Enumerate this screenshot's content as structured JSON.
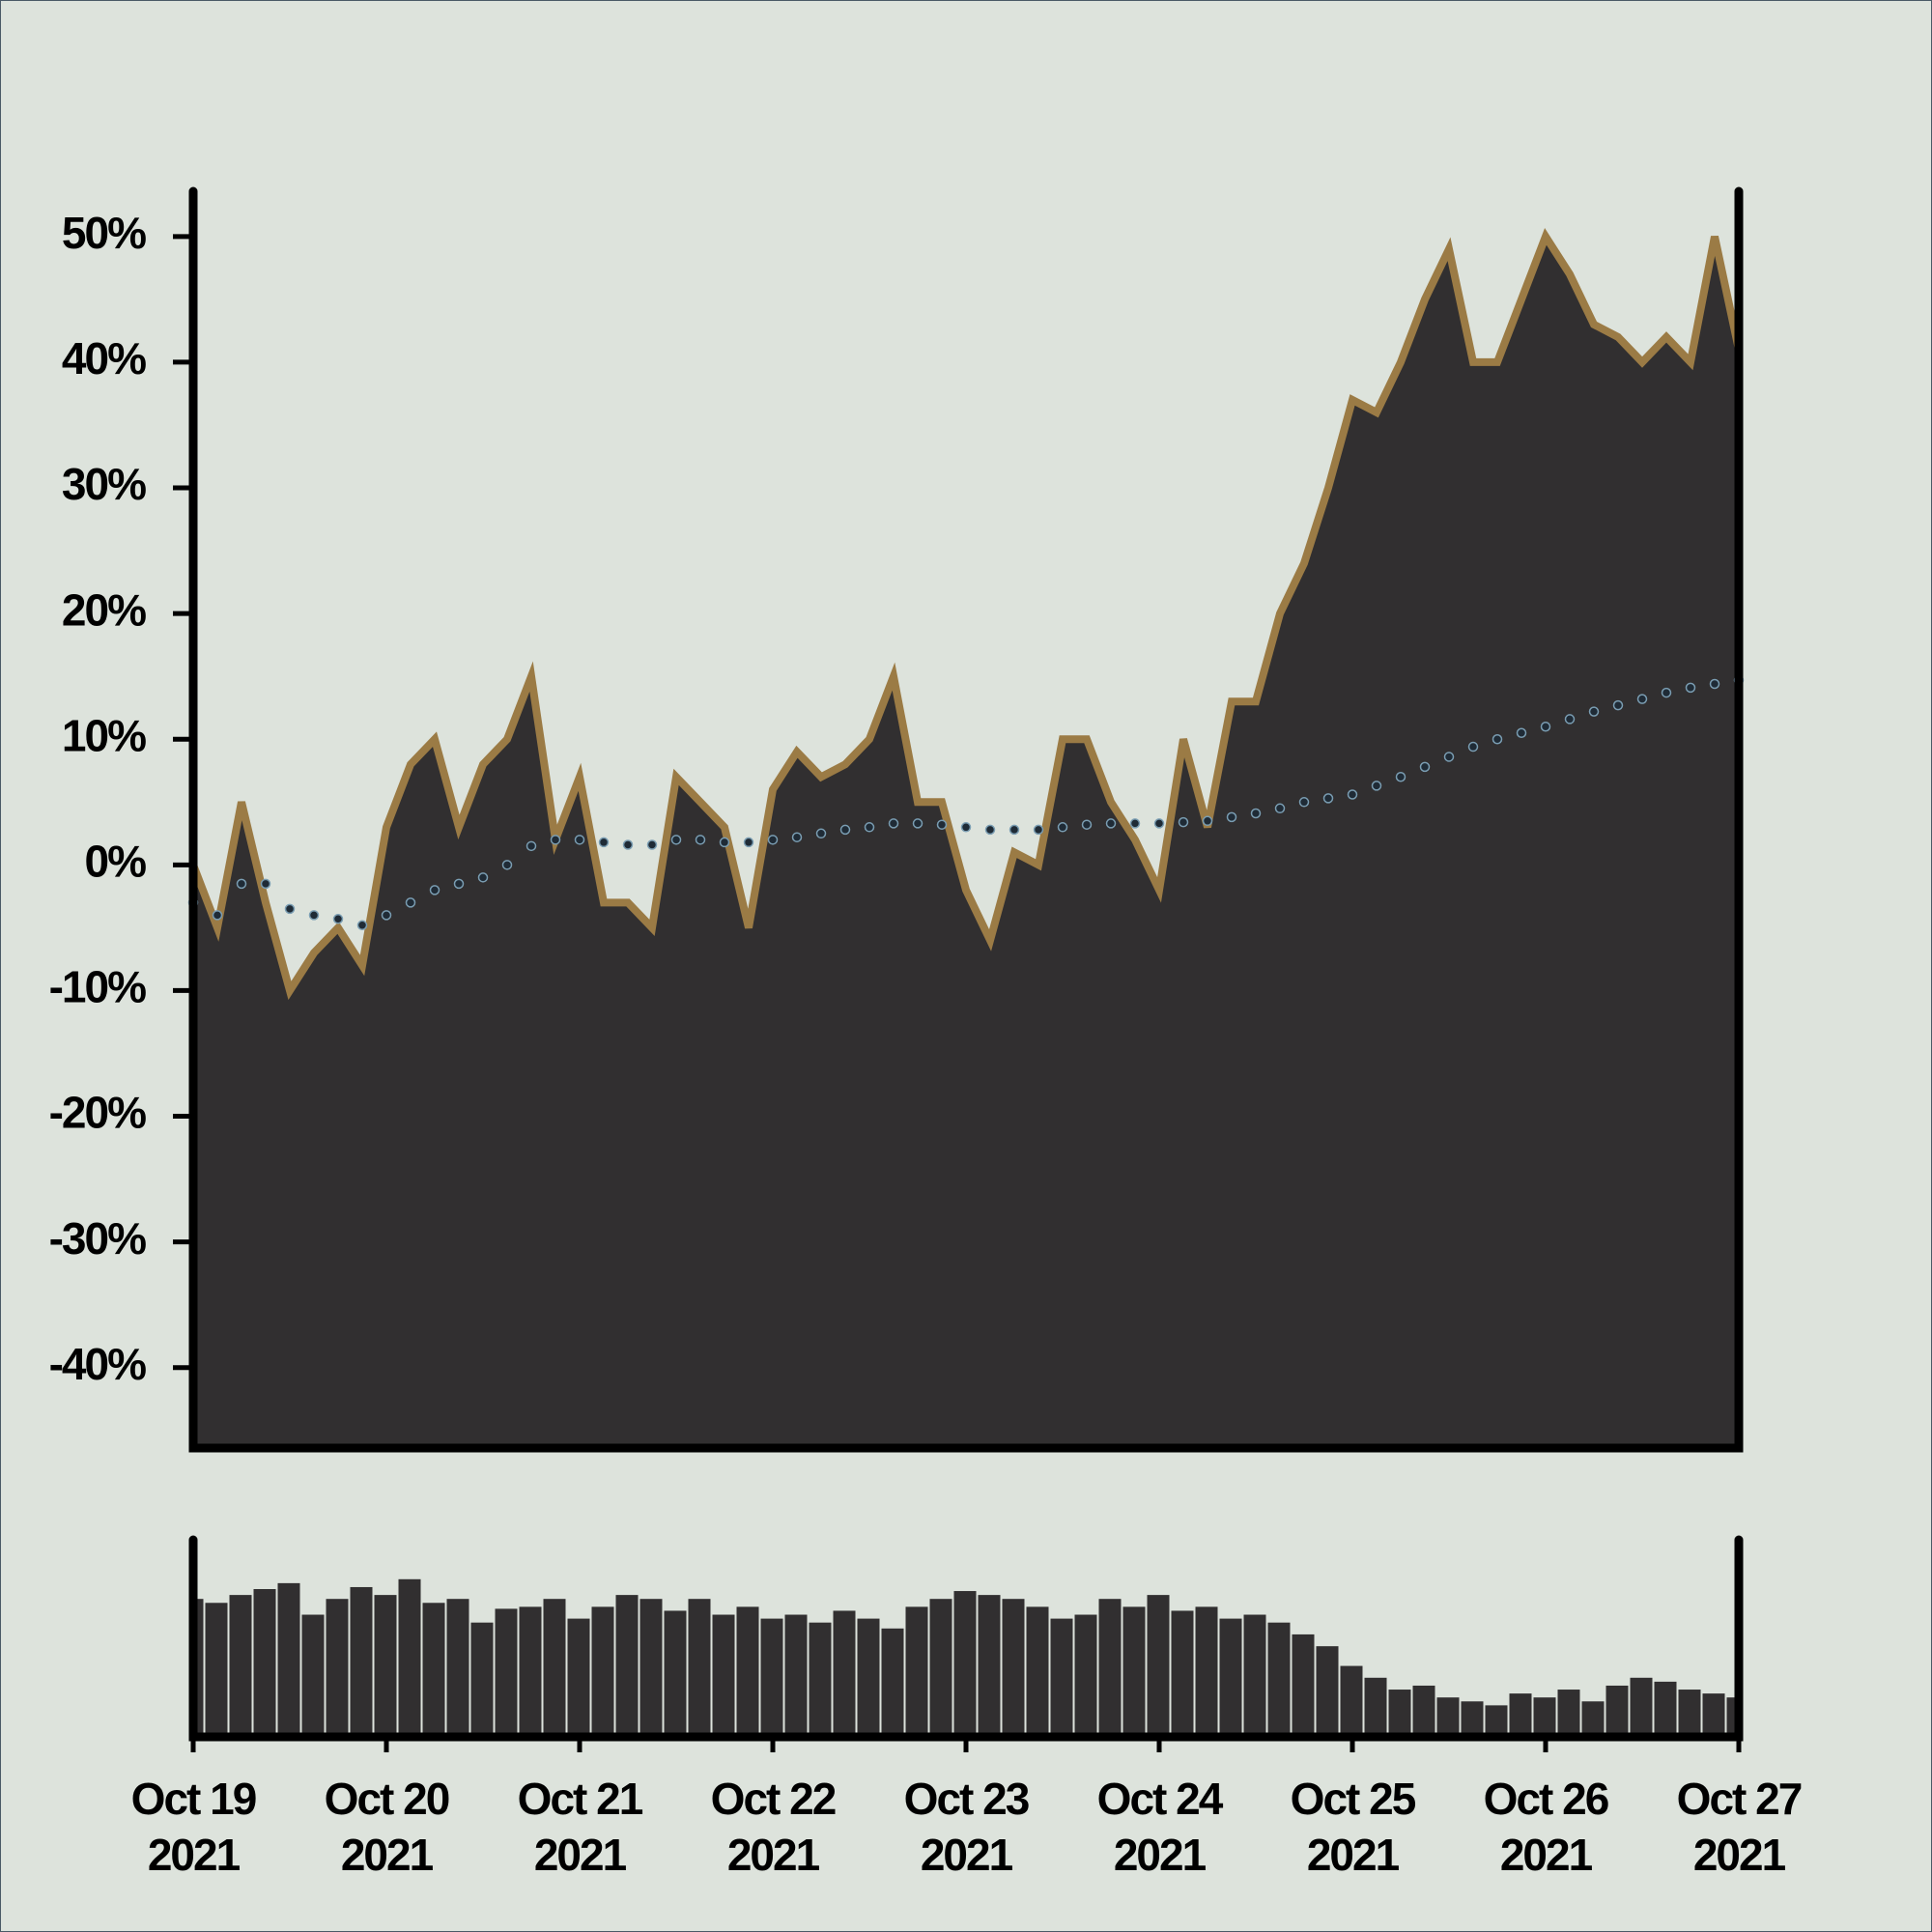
{
  "chart_data": [
    {
      "type": "area",
      "x": [
        "2021-10-19T00:00",
        "2021-10-19T03:00",
        "2021-10-19T06:00",
        "2021-10-19T09:00",
        "2021-10-19T12:00",
        "2021-10-19T15:00",
        "2021-10-19T18:00",
        "2021-10-19T21:00",
        "2021-10-20T00:00",
        "2021-10-20T03:00",
        "2021-10-20T06:00",
        "2021-10-20T09:00",
        "2021-10-20T12:00",
        "2021-10-20T15:00",
        "2021-10-20T18:00",
        "2021-10-20T21:00",
        "2021-10-21T00:00",
        "2021-10-21T03:00",
        "2021-10-21T06:00",
        "2021-10-21T09:00",
        "2021-10-21T12:00",
        "2021-10-21T15:00",
        "2021-10-21T18:00",
        "2021-10-21T21:00",
        "2021-10-22T00:00",
        "2021-10-22T03:00",
        "2021-10-22T06:00",
        "2021-10-22T09:00",
        "2021-10-22T12:00",
        "2021-10-22T15:00",
        "2021-10-22T18:00",
        "2021-10-22T21:00",
        "2021-10-23T00:00",
        "2021-10-23T03:00",
        "2021-10-23T06:00",
        "2021-10-23T09:00",
        "2021-10-23T12:00",
        "2021-10-23T15:00",
        "2021-10-23T18:00",
        "2021-10-23T21:00",
        "2021-10-24T00:00",
        "2021-10-24T03:00",
        "2021-10-24T06:00",
        "2021-10-24T09:00",
        "2021-10-24T12:00",
        "2021-10-24T15:00",
        "2021-10-24T18:00",
        "2021-10-24T21:00",
        "2021-10-25T00:00",
        "2021-10-25T03:00",
        "2021-10-25T06:00",
        "2021-10-25T09:00",
        "2021-10-25T12:00",
        "2021-10-25T15:00",
        "2021-10-25T18:00",
        "2021-10-25T21:00",
        "2021-10-26T00:00",
        "2021-10-26T03:00",
        "2021-10-26T06:00",
        "2021-10-26T09:00",
        "2021-10-26T12:00",
        "2021-10-26T15:00",
        "2021-10-26T18:00",
        "2021-10-26T21:00",
        "2021-10-27T00:00"
      ],
      "series": [
        {
          "type": "area",
          "color": "#9b7b45",
          "fill": "#312f30",
          "values": [
            0,
            -5,
            5,
            -3,
            -10,
            -7,
            -5,
            -8,
            3,
            8,
            10,
            3,
            8,
            10,
            15,
            2,
            7,
            -3,
            -3,
            -5,
            7,
            5,
            3,
            -5,
            6,
            9,
            7,
            8,
            10,
            15,
            5,
            5,
            -2,
            -6,
            1,
            0,
            10,
            10,
            5,
            2,
            -2,
            10,
            3,
            13,
            13,
            20,
            24,
            30,
            37,
            36,
            40,
            45,
            49,
            40,
            40,
            45,
            50,
            47,
            43,
            42,
            40,
            42,
            40,
            50,
            41
          ]
        },
        {
          "type": "dots",
          "color": "#1f2b36",
          "edge": "#7a9db2",
          "values": [
            -3,
            -4,
            -1.5,
            -1.5,
            -3.5,
            -4,
            -4.3,
            -4.8,
            -4,
            -3,
            -2,
            -1.5,
            -1,
            0,
            1.5,
            2,
            2,
            1.8,
            1.6,
            1.6,
            2,
            2,
            1.8,
            1.8,
            2,
            2.2,
            2.5,
            2.8,
            3,
            3.3,
            3.3,
            3.2,
            3,
            2.8,
            2.8,
            2.8,
            3,
            3.2,
            3.3,
            3.3,
            3.3,
            3.4,
            3.5,
            3.8,
            4.1,
            4.5,
            5,
            5.3,
            5.6,
            6.3,
            7,
            7.8,
            8.6,
            9.4,
            10,
            10.5,
            11,
            11.6,
            12.2,
            12.7,
            13.2,
            13.7,
            14.1,
            14.4,
            14.7
          ]
        }
      ],
      "xlim": [
        "2021-10-19T00:00",
        "2021-10-27T00:00"
      ],
      "ylim": [
        -46.4,
        53.6
      ],
      "yticks": [
        {
          "value": -40,
          "label": "-40%"
        },
        {
          "value": -30,
          "label": "-30%"
        },
        {
          "value": -20,
          "label": "-20%"
        },
        {
          "value": -10,
          "label": "-10%"
        },
        {
          "value": 0,
          "label": "0%"
        },
        {
          "value": 10,
          "label": "10%"
        },
        {
          "value": 20,
          "label": "20%"
        },
        {
          "value": 30,
          "label": "30%"
        },
        {
          "value": 40,
          "label": "40%"
        },
        {
          "value": 50,
          "label": "50%"
        }
      ]
    },
    {
      "type": "bar",
      "x": [
        "2021-10-19T00:00",
        "2021-10-19T03:00",
        "2021-10-19T06:00",
        "2021-10-19T09:00",
        "2021-10-19T12:00",
        "2021-10-19T15:00",
        "2021-10-19T18:00",
        "2021-10-19T21:00",
        "2021-10-20T00:00",
        "2021-10-20T03:00",
        "2021-10-20T06:00",
        "2021-10-20T09:00",
        "2021-10-20T12:00",
        "2021-10-20T15:00",
        "2021-10-20T18:00",
        "2021-10-20T21:00",
        "2021-10-21T00:00",
        "2021-10-21T03:00",
        "2021-10-21T06:00",
        "2021-10-21T09:00",
        "2021-10-21T12:00",
        "2021-10-21T15:00",
        "2021-10-21T18:00",
        "2021-10-21T21:00",
        "2021-10-22T00:00",
        "2021-10-22T03:00",
        "2021-10-22T06:00",
        "2021-10-22T09:00",
        "2021-10-22T12:00",
        "2021-10-22T15:00",
        "2021-10-22T18:00",
        "2021-10-22T21:00",
        "2021-10-23T00:00",
        "2021-10-23T03:00",
        "2021-10-23T06:00",
        "2021-10-23T09:00",
        "2021-10-23T12:00",
        "2021-10-23T15:00",
        "2021-10-23T18:00",
        "2021-10-23T21:00",
        "2021-10-24T00:00",
        "2021-10-24T03:00",
        "2021-10-24T06:00",
        "2021-10-24T09:00",
        "2021-10-24T12:00",
        "2021-10-24T15:00",
        "2021-10-24T18:00",
        "2021-10-24T21:00",
        "2021-10-25T00:00",
        "2021-10-25T03:00",
        "2021-10-25T06:00",
        "2021-10-25T09:00",
        "2021-10-25T12:00",
        "2021-10-25T15:00",
        "2021-10-25T18:00",
        "2021-10-25T21:00",
        "2021-10-26T00:00",
        "2021-10-26T03:00",
        "2021-10-26T06:00",
        "2021-10-26T09:00",
        "2021-10-26T12:00",
        "2021-10-26T15:00",
        "2021-10-26T18:00",
        "2021-10-26T21:00",
        "2021-10-27T00:00"
      ],
      "color": "#312f30",
      "values": [
        70,
        68,
        72,
        75,
        78,
        62,
        70,
        76,
        72,
        80,
        68,
        70,
        58,
        65,
        66,
        70,
        60,
        66,
        72,
        70,
        64,
        70,
        62,
        66,
        60,
        62,
        58,
        64,
        60,
        55,
        66,
        70,
        74,
        72,
        70,
        66,
        60,
        62,
        70,
        66,
        72,
        64,
        66,
        60,
        62,
        58,
        52,
        46,
        36,
        30,
        24,
        26,
        20,
        18,
        16,
        22,
        20,
        24,
        18,
        26,
        30,
        28,
        24,
        22,
        20
      ],
      "xlim": [
        "2021-10-19T00:00",
        "2021-10-27T00:00"
      ],
      "ylim": [
        0,
        100
      ],
      "xticks": [
        {
          "value": "2021-10-19T00:00",
          "label": [
            "Oct 19",
            "2021"
          ]
        },
        {
          "value": "2021-10-20T00:00",
          "label": [
            "Oct 20",
            "2021"
          ]
        },
        {
          "value": "2021-10-21T00:00",
          "label": [
            "Oct 21",
            "2021"
          ]
        },
        {
          "value": "2021-10-22T00:00",
          "label": [
            "Oct 22",
            "2021"
          ]
        },
        {
          "value": "2021-10-23T00:00",
          "label": [
            "Oct 23",
            "2021"
          ]
        },
        {
          "value": "2021-10-24T00:00",
          "label": [
            "Oct 24",
            "2021"
          ]
        },
        {
          "value": "2021-10-25T00:00",
          "label": [
            "Oct 25",
            "2021"
          ]
        },
        {
          "value": "2021-10-26T00:00",
          "label": [
            "Oct 26",
            "2021"
          ]
        },
        {
          "value": "2021-10-27T00:00",
          "label": [
            "Oct 27",
            "2021"
          ]
        }
      ]
    }
  ]
}
